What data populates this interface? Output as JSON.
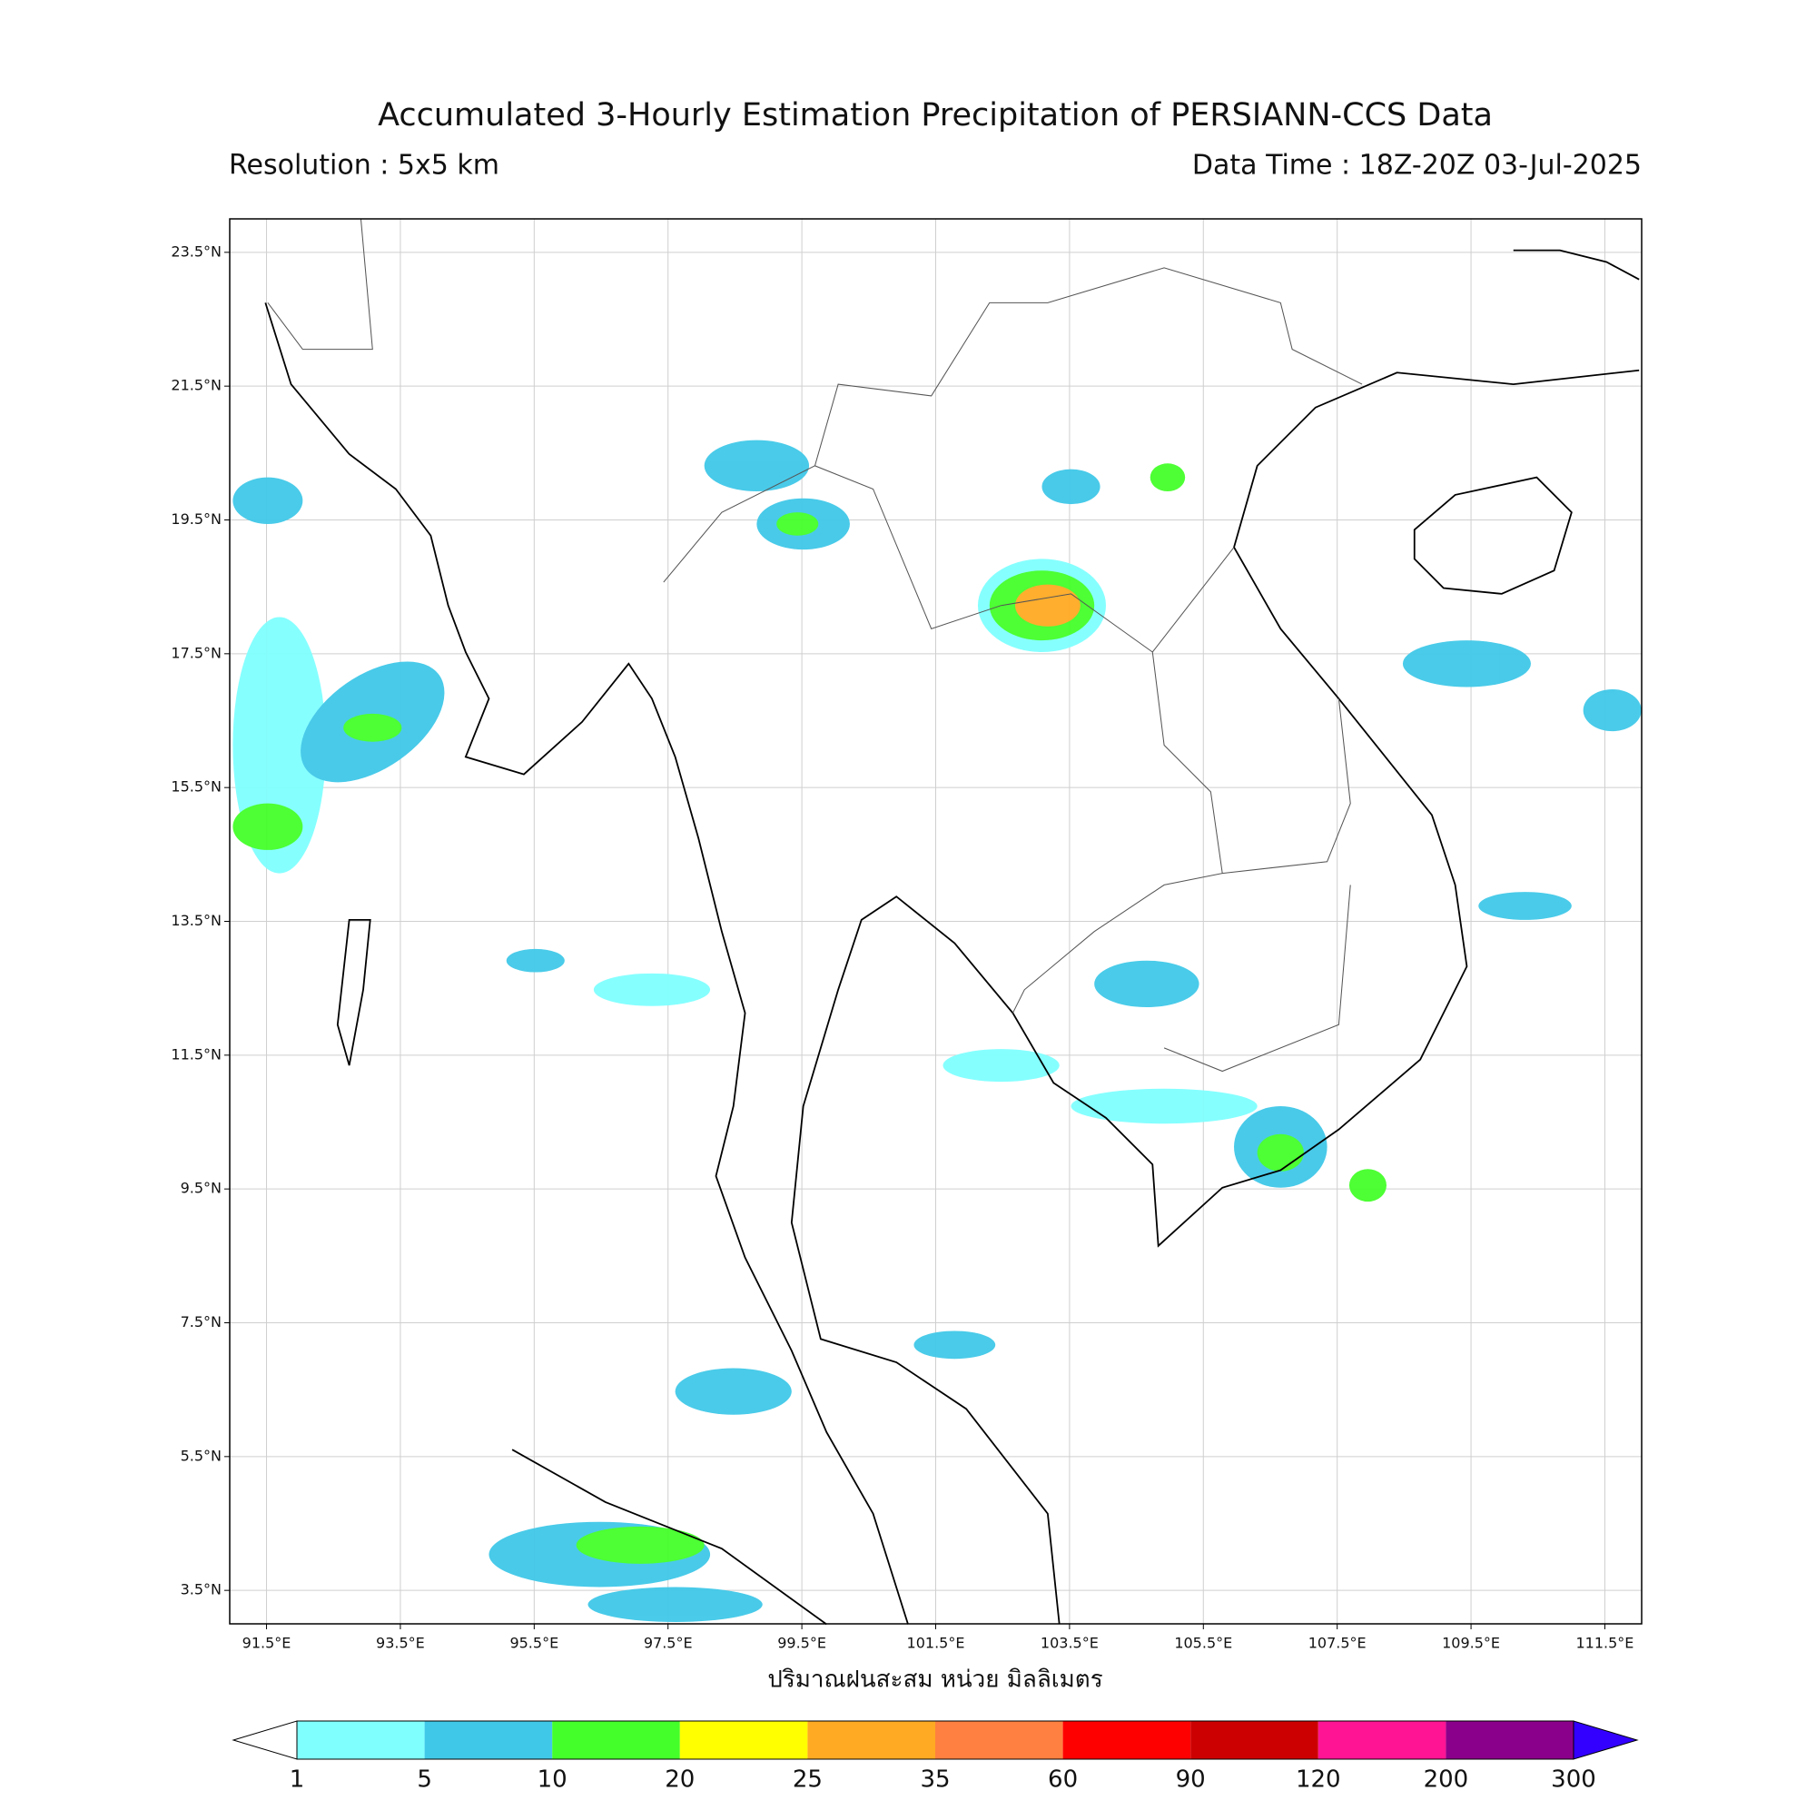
{
  "title": "Accumulated 3-Hourly Estimation Precipitation of PERSIANN-CCS Data",
  "resolution": "Resolution : 5x5 km",
  "data_time": "Data Time : 18Z-20Z 03-Jul-2025",
  "map": {
    "xlim": [
      90.95,
      112.05
    ],
    "ylim": [
      3.0,
      24.0
    ],
    "xticks": [
      {
        "value": 91.5,
        "label": "91.5°E"
      },
      {
        "value": 93.5,
        "label": "93.5°E"
      },
      {
        "value": 95.5,
        "label": "95.5°E"
      },
      {
        "value": 97.5,
        "label": "97.5°E"
      },
      {
        "value": 99.5,
        "label": "99.5°E"
      },
      {
        "value": 101.5,
        "label": "101.5°E"
      },
      {
        "value": 103.5,
        "label": "103.5°E"
      },
      {
        "value": 105.5,
        "label": "105.5°E"
      },
      {
        "value": 107.5,
        "label": "107.5°E"
      },
      {
        "value": 109.5,
        "label": "109.5°E"
      },
      {
        "value": 111.5,
        "label": "111.5°E"
      }
    ],
    "yticks": [
      {
        "value": 3.5,
        "label": "3.5°N"
      },
      {
        "value": 5.5,
        "label": "5.5°N"
      },
      {
        "value": 7.5,
        "label": "7.5°N"
      },
      {
        "value": 9.5,
        "label": "9.5°N"
      },
      {
        "value": 11.5,
        "label": "11.5°N"
      },
      {
        "value": 13.5,
        "label": "13.5°N"
      },
      {
        "value": 15.5,
        "label": "15.5°N"
      },
      {
        "value": 17.5,
        "label": "17.5°N"
      },
      {
        "value": 19.5,
        "label": "19.5°N"
      },
      {
        "value": 21.5,
        "label": "21.5°N"
      },
      {
        "value": 23.5,
        "label": "23.5°N"
      }
    ],
    "grid": true
  },
  "x_label": "ปริมาณฝนสะสม หน่วย มิลลิเมตร",
  "colorbar": {
    "levels": [
      1,
      5,
      10,
      20,
      25,
      35,
      60,
      90,
      120,
      200,
      300
    ],
    "colors": [
      "#80ffff",
      "#40c8e8",
      "#44ff2a",
      "#ffff00",
      "#ffaa22",
      "#ff8040",
      "#ff0000",
      "#cc0000",
      "#ff1493",
      "#8b008b"
    ],
    "under_color": "#ffffff",
    "over_color": "#3300ff"
  }
}
